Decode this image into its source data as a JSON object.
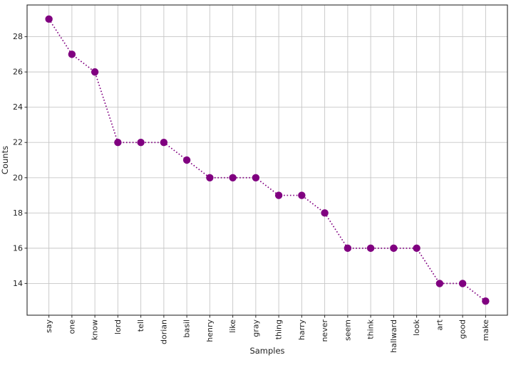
{
  "figure": {
    "background": "#ffffff",
    "grid_color": "#c6c6c6",
    "spine_color": "#2a2a2a",
    "tick_color": "#2a2a2a",
    "text_color": "#1f1f1f"
  },
  "chart_data": {
    "type": "line",
    "title": "",
    "xlabel": "Samples",
    "ylabel": "Counts",
    "categories": [
      "say",
      "one",
      "know",
      "lord",
      "tell",
      "dorian",
      "basil",
      "henry",
      "like",
      "gray",
      "thing",
      "harry",
      "never",
      "seem",
      "think",
      "hallward",
      "look",
      "art",
      "good",
      "make"
    ],
    "values": [
      29,
      27,
      26,
      22,
      22,
      22,
      21,
      20,
      20,
      20,
      19,
      19,
      18,
      16,
      16,
      16,
      16,
      14,
      14,
      13
    ],
    "series": [
      {
        "name": "counts",
        "values": [
          29,
          27,
          26,
          22,
          22,
          22,
          21,
          20,
          20,
          20,
          19,
          19,
          18,
          16,
          16,
          16,
          16,
          14,
          14,
          13
        ]
      }
    ],
    "series_color": "#800080",
    "line_style": "dotted",
    "marker": "circle",
    "yticks": [
      14,
      16,
      18,
      20,
      22,
      24,
      26,
      28
    ],
    "ylim": [
      12.2,
      29.8
    ],
    "xlim": [
      -0.95,
      19.95
    ],
    "grid": true,
    "legend_position": "none"
  }
}
